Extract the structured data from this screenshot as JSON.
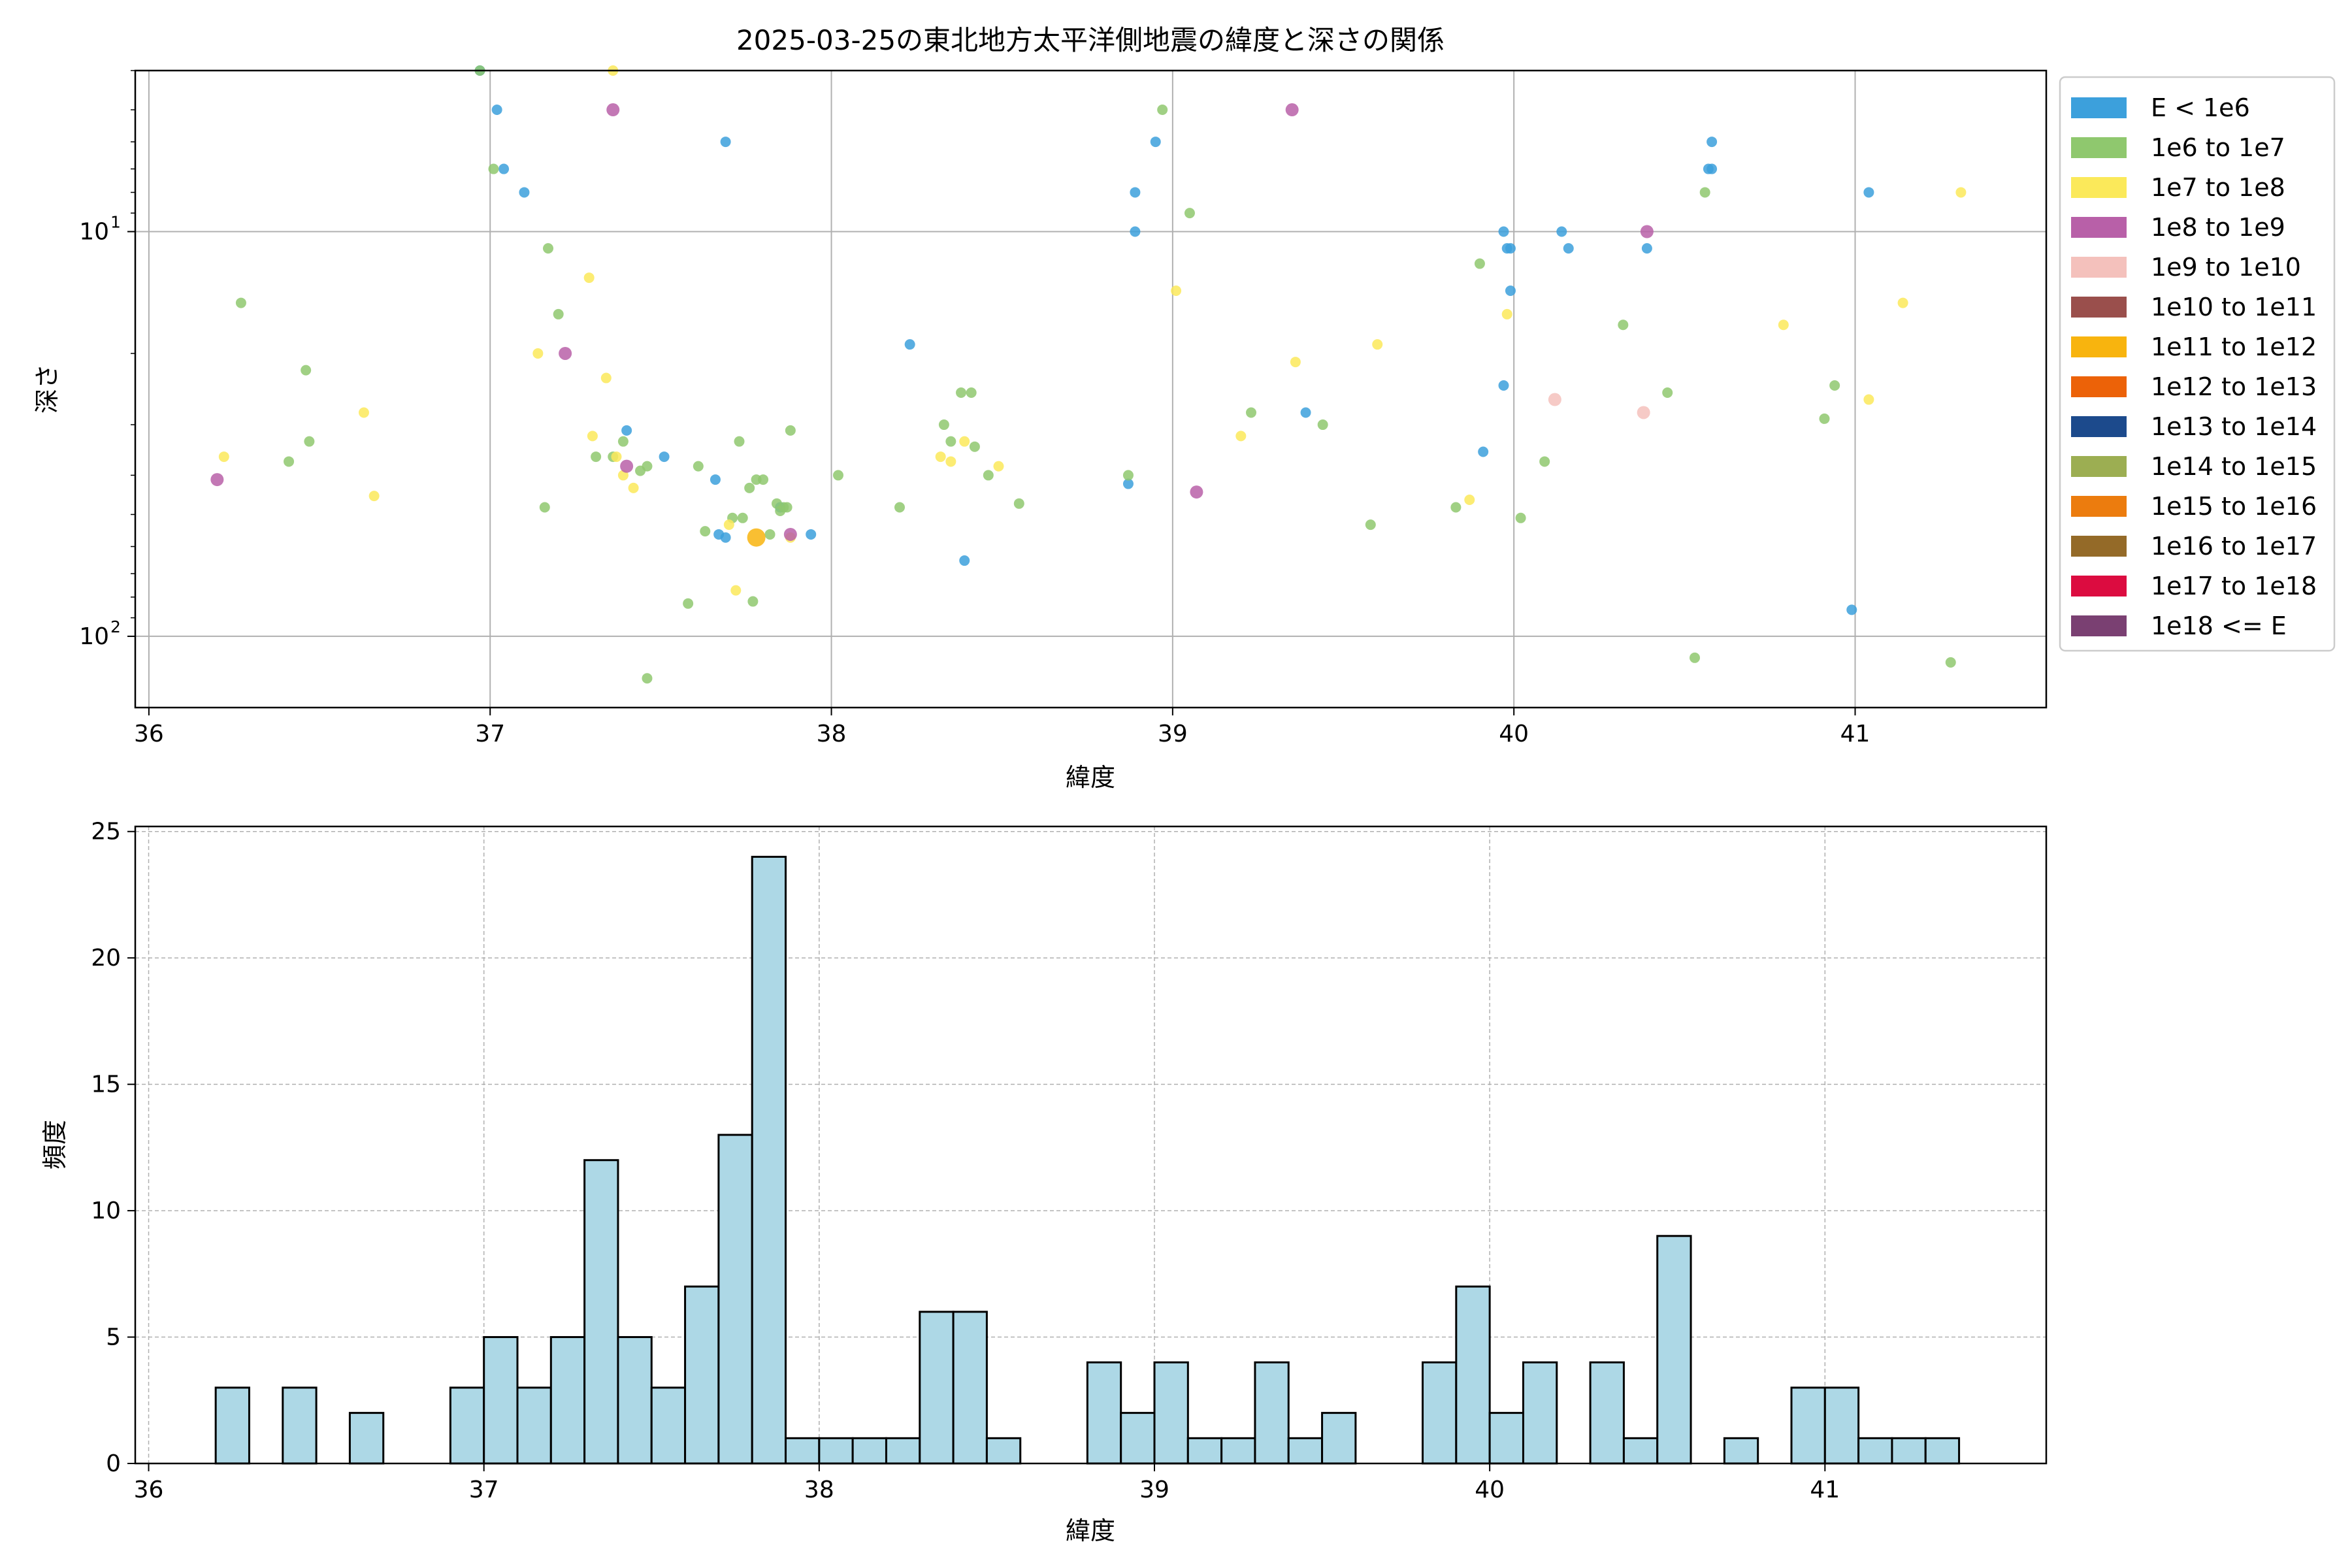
{
  "chart_data": [
    {
      "type": "scatter",
      "title": "2025-03-25の東北地方太平洋側地震の緯度と深さの関係",
      "xlabel": "緯度",
      "ylabel": "深さ",
      "xlim": [
        35.96,
        41.56
      ],
      "ylim": [
        150,
        4
      ],
      "y_scale": "log",
      "y_inverted": true,
      "grid": true,
      "legend_position": "outside-right",
      "xticks": [
        36,
        37,
        38,
        39,
        40,
        41
      ],
      "yticks": [
        {
          "value": 10,
          "label": "10",
          "sup": "1"
        },
        {
          "value": 100,
          "label": "10",
          "sup": "2"
        }
      ],
      "legend": [
        {
          "label": "E < 1e6",
          "color": "#3ca0dc"
        },
        {
          "label": "1e6 to 1e7",
          "color": "#8fc86e"
        },
        {
          "label": "1e7 to 1e8",
          "color": "#fbe95a"
        },
        {
          "label": "1e8 to 1e9",
          "color": "#b860a8"
        },
        {
          "label": "1e9 to 1e10",
          "color": "#f4c1bc"
        },
        {
          "label": "1e10 to 1e11",
          "color": "#9a4f4c"
        },
        {
          "label": "1e11 to 1e12",
          "color": "#f8b40e"
        },
        {
          "label": "1e12 to 1e13",
          "color": "#ec6208"
        },
        {
          "label": "1e13 to 1e14",
          "color": "#1c4a8c"
        },
        {
          "label": "1e14 to 1e15",
          "color": "#9cae52"
        },
        {
          "label": "1e15 to 1e16",
          "color": "#ec7c0e"
        },
        {
          "label": "1e16 to 1e17",
          "color": "#946a28"
        },
        {
          "label": "1e17 to 1e18",
          "color": "#dc0c40"
        },
        {
          "label": "1e18 <= E",
          "color": "#7a4072"
        }
      ],
      "series": [
        {
          "name": "E < 1e6",
          "points": [
            [
              36.97,
              4
            ],
            [
              37.02,
              5
            ],
            [
              37.04,
              7
            ],
            [
              37.1,
              8
            ],
            [
              37.69,
              6
            ],
            [
              37.4,
              31
            ],
            [
              37.51,
              36
            ],
            [
              37.66,
              41
            ],
            [
              37.67,
              56
            ],
            [
              37.69,
              57
            ],
            [
              37.94,
              56
            ],
            [
              37.85,
              48
            ],
            [
              38.23,
              19
            ],
            [
              38.39,
              65
            ],
            [
              38.87,
              42
            ],
            [
              38.89,
              8
            ],
            [
              38.89,
              10
            ],
            [
              38.95,
              6
            ],
            [
              39.39,
              28
            ],
            [
              39.91,
              35
            ],
            [
              39.97,
              24
            ],
            [
              39.97,
              10
            ],
            [
              39.98,
              11
            ],
            [
              39.99,
              11
            ],
            [
              39.99,
              14
            ],
            [
              40.14,
              10
            ],
            [
              40.16,
              11
            ],
            [
              40.39,
              11
            ],
            [
              40.57,
              7
            ],
            [
              40.58,
              7
            ],
            [
              40.58,
              6
            ],
            [
              40.99,
              86
            ],
            [
              41.04,
              8
            ]
          ]
        },
        {
          "name": "1e6 to 1e7",
          "points": [
            [
              36.27,
              15
            ],
            [
              36.41,
              37
            ],
            [
              36.46,
              22
            ],
            [
              36.47,
              33
            ],
            [
              36.97,
              4
            ],
            [
              37.01,
              7
            ],
            [
              37.16,
              48
            ],
            [
              37.17,
              11
            ],
            [
              37.2,
              16
            ],
            [
              37.31,
              36
            ],
            [
              37.36,
              36
            ],
            [
              37.39,
              33
            ],
            [
              37.44,
              39
            ],
            [
              37.46,
              38
            ],
            [
              37.46,
              127
            ],
            [
              37.58,
              83
            ],
            [
              37.61,
              38
            ],
            [
              37.63,
              55
            ],
            [
              37.71,
              51
            ],
            [
              37.73,
              33
            ],
            [
              37.74,
              51
            ],
            [
              37.76,
              43
            ],
            [
              37.77,
              82
            ],
            [
              37.78,
              41
            ],
            [
              37.8,
              41
            ],
            [
              37.82,
              56
            ],
            [
              37.84,
              47
            ],
            [
              37.85,
              49
            ],
            [
              37.86,
              48
            ],
            [
              37.87,
              48
            ],
            [
              37.88,
              31
            ],
            [
              38.02,
              40
            ],
            [
              38.2,
              48
            ],
            [
              38.33,
              30
            ],
            [
              38.35,
              33
            ],
            [
              38.38,
              25
            ],
            [
              38.41,
              25
            ],
            [
              38.42,
              34
            ],
            [
              38.46,
              40
            ],
            [
              38.55,
              47
            ],
            [
              38.87,
              40
            ],
            [
              38.97,
              5
            ],
            [
              39.05,
              9
            ],
            [
              39.23,
              28
            ],
            [
              39.44,
              30
            ],
            [
              39.58,
              53
            ],
            [
              39.83,
              48
            ],
            [
              39.9,
              12
            ],
            [
              40.02,
              51
            ],
            [
              40.09,
              37
            ],
            [
              40.32,
              17
            ],
            [
              40.45,
              25
            ],
            [
              40.53,
              113
            ],
            [
              40.56,
              8
            ],
            [
              40.91,
              29
            ],
            [
              40.94,
              24
            ],
            [
              41.28,
              116
            ]
          ]
        },
        {
          "name": "1e7 to 1e8",
          "points": [
            [
              36.22,
              36
            ],
            [
              36.63,
              28
            ],
            [
              36.66,
              45
            ],
            [
              37.14,
              20
            ],
            [
              37.29,
              13
            ],
            [
              37.3,
              32
            ],
            [
              37.34,
              23
            ],
            [
              37.36,
              4
            ],
            [
              37.37,
              36
            ],
            [
              37.39,
              40
            ],
            [
              37.42,
              43
            ],
            [
              37.7,
              53
            ],
            [
              37.72,
              77
            ],
            [
              37.88,
              57
            ],
            [
              38.32,
              36
            ],
            [
              38.35,
              37
            ],
            [
              38.39,
              33
            ],
            [
              38.49,
              38
            ],
            [
              39.01,
              14
            ],
            [
              39.2,
              32
            ],
            [
              39.36,
              21
            ],
            [
              39.6,
              19
            ],
            [
              39.87,
              46
            ],
            [
              39.98,
              16
            ],
            [
              40.79,
              17
            ],
            [
              41.04,
              26
            ],
            [
              41.14,
              15
            ],
            [
              41.31,
              8
            ]
          ]
        },
        {
          "name": "1e8 to 1e9",
          "points": [
            [
              36.2,
              41
            ],
            [
              37.22,
              20
            ],
            [
              37.36,
              5
            ],
            [
              37.4,
              38
            ],
            [
              37.88,
              56
            ],
            [
              39.07,
              44
            ],
            [
              39.35,
              5
            ],
            [
              40.39,
              10
            ]
          ]
        },
        {
          "name": "1e9 to 1e10",
          "points": [
            [
              40.12,
              26
            ],
            [
              40.38,
              28
            ]
          ]
        },
        {
          "name": "1e11 to 1e12",
          "points": [
            [
              37.78,
              57
            ]
          ]
        }
      ]
    },
    {
      "type": "bar",
      "subtype": "histogram",
      "title": "",
      "xlabel": "緯度",
      "ylabel": "頻度",
      "xlim": [
        35.96,
        41.66
      ],
      "ylim": [
        0,
        25.2
      ],
      "grid": true,
      "xticks": [
        36,
        37,
        38,
        39,
        40,
        41
      ],
      "yticks": [
        0,
        5,
        10,
        15,
        20,
        25
      ],
      "bar_color": "#add8e6",
      "bin_start": 36.2,
      "bin_width": 0.1,
      "values": [
        3,
        0,
        3,
        0,
        2,
        0,
        0,
        3,
        5,
        3,
        5,
        12,
        5,
        3,
        7,
        13,
        24,
        1,
        1,
        1,
        1,
        6,
        6,
        1,
        0,
        0,
        4,
        2,
        4,
        1,
        1,
        4,
        1,
        2,
        0,
        0,
        4,
        7,
        2,
        4,
        0,
        4,
        1,
        9,
        0,
        1,
        0,
        3,
        3,
        1,
        1,
        1
      ]
    }
  ]
}
